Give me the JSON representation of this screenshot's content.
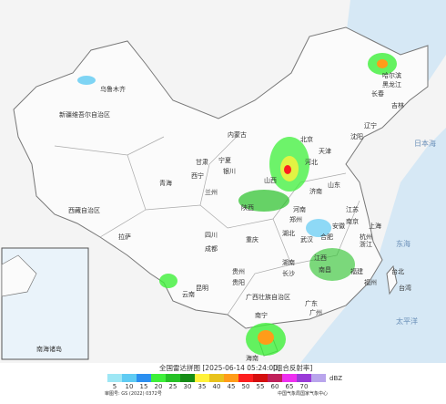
{
  "header": {
    "title": "全国雷达拼图 [2025-06-14 05:24:00]",
    "product": "[组合反射率]"
  },
  "legend": {
    "unit": "dBZ",
    "ticks": [
      5,
      10,
      15,
      20,
      25,
      30,
      35,
      40,
      45,
      50,
      55,
      60,
      65,
      70
    ],
    "colors": [
      "#9ee7f5",
      "#5fcbf3",
      "#2b8ff0",
      "#3ef03a",
      "#26c126",
      "#168c16",
      "#fff23a",
      "#e8c21c",
      "#ff9c19",
      "#fd1f1f",
      "#d40f0f",
      "#c0205a",
      "#ee2ff0",
      "#9a3bd8",
      "#b9a5ec"
    ]
  },
  "labels": [
    "新疆维吾尔自治区",
    "西藏自治区",
    "青海",
    "内蒙古",
    "甘肃",
    "宁夏",
    "陕西",
    "山西",
    "河北",
    "北京",
    "天津",
    "山东",
    "河南",
    "江苏",
    "安徽",
    "湖北",
    "四川",
    "重庆",
    "贵州",
    "湖南",
    "江西",
    "浙江",
    "福建",
    "广东",
    "广西壮族自治区",
    "云南",
    "黑龙江",
    "吉林",
    "辽宁",
    "台湾",
    "海南",
    "乌鲁木齐",
    "拉萨",
    "西宁",
    "兰州",
    "银川",
    "成都",
    "昆明",
    "贵阳",
    "长沙",
    "武汉",
    "郑州",
    "济南",
    "南京",
    "合肥",
    "上海",
    "杭州",
    "福州",
    "南昌",
    "广州",
    "南宁",
    "哈尔滨",
    "长春",
    "沈阳",
    "台北",
    "日本海",
    "东海",
    "太平洋",
    "南海诸岛"
  ],
  "footer": {
    "approval": "审图号: GS (2022) 0372号",
    "source": "中国气象局国家气象中心"
  }
}
